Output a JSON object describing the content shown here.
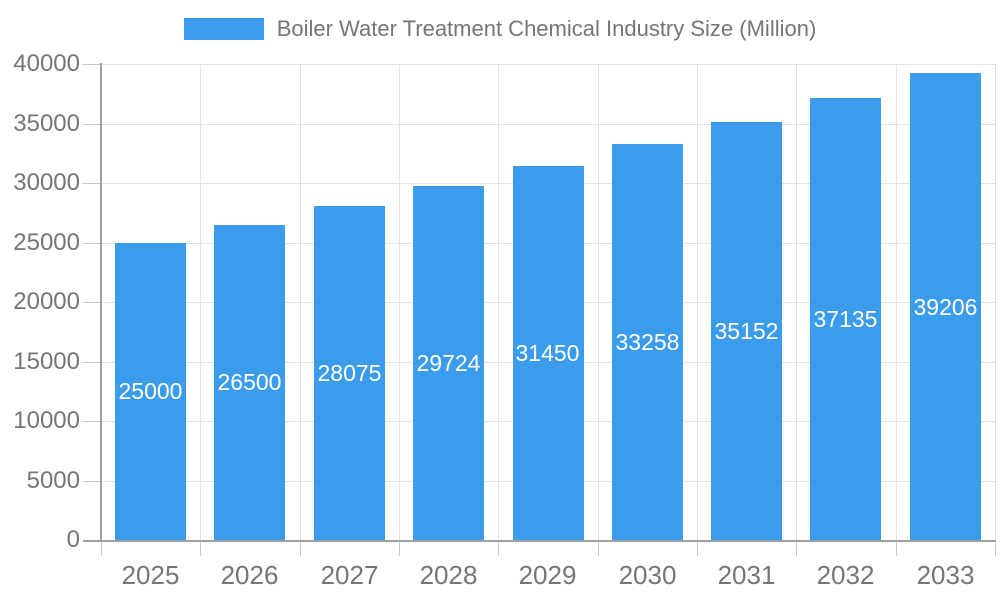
{
  "legend": {
    "label": "Boiler Water Treatment Chemical Industry Size (Million)"
  },
  "chart_data": {
    "type": "bar",
    "title": "Boiler Water Treatment Chemical Industry Size (Million)",
    "series_name": "Boiler Water Treatment Chemical Industry Size (Million)",
    "categories": [
      "2025",
      "2026",
      "2027",
      "2028",
      "2029",
      "2030",
      "2031",
      "2032",
      "2033"
    ],
    "values": [
      25000,
      26500,
      28075,
      29724,
      31450,
      33258,
      35152,
      37135,
      39206
    ],
    "xlabel": "",
    "ylabel": "",
    "ylim": [
      0,
      40000
    ],
    "yticks": [
      0,
      5000,
      10000,
      15000,
      20000,
      25000,
      30000,
      35000,
      40000
    ],
    "grid": true,
    "legend_position": "top",
    "bar_labels_inside": true
  },
  "colors": {
    "accent": "#3B9CEB",
    "bar_label": "#FFFFFF",
    "axis_text": "#757575",
    "grid_line": "#E2E2E2",
    "tick_line": "#C8C8C8",
    "axis_line": "#9E9E9E",
    "background": "#FFFFFF"
  }
}
